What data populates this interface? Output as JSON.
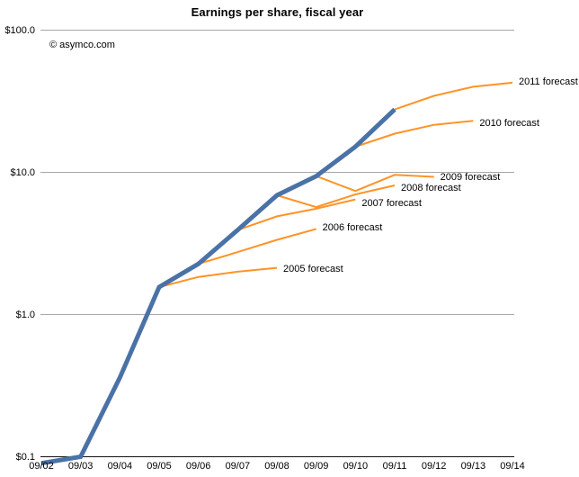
{
  "title": "Earnings per share, fiscal year",
  "watermark": "© asymco.com",
  "colors": {
    "actual": "#4a72a6",
    "forecast": "#ff9326",
    "gridline": "#a8a8a8",
    "axis": "#111111",
    "text": "#000000"
  },
  "chart_data": {
    "type": "line",
    "title": "Earnings per share, fiscal year",
    "y_scale": "log",
    "ylim": [
      0.1,
      100
    ],
    "grid": true,
    "legend": "inline-labels-at-line-ends",
    "xlabel": "",
    "ylabel": "",
    "x_categories": [
      "09/02",
      "09/03",
      "09/04",
      "09/05",
      "09/06",
      "09/07",
      "09/08",
      "09/09",
      "09/10",
      "09/11",
      "09/12",
      "09/13",
      "09/14"
    ],
    "y_ticks": [
      {
        "label": "$100.0",
        "value": 100,
        "is_axis": false
      },
      {
        "label": "$10.0",
        "value": 10,
        "is_axis": false
      },
      {
        "label": "$1.0",
        "value": 1,
        "is_axis": false
      },
      {
        "label": "$0.1",
        "value": 0.1,
        "is_axis": true
      }
    ],
    "series": [
      {
        "name": "actual-eps",
        "role": "actual",
        "start": "09/02",
        "values": [
          0.09,
          0.1,
          0.36,
          1.56,
          2.27,
          3.93,
          6.9,
          9.4,
          15.15,
          27.7
        ],
        "label": null,
        "label_dy": 0
      },
      {
        "name": "2005-forecast",
        "role": "forecast",
        "start": "09/05",
        "values": [
          1.56,
          1.84,
          2.0,
          2.13
        ],
        "label": "2005 forecast",
        "label_dy": 2
      },
      {
        "name": "2006-forecast",
        "role": "forecast",
        "start": "09/06",
        "values": [
          2.27,
          2.75,
          3.35,
          4.0
        ],
        "label": "2006 forecast",
        "label_dy": -1
      },
      {
        "name": "2007-forecast",
        "role": "forecast",
        "start": "09/07",
        "values": [
          3.93,
          4.9,
          5.55,
          6.45
        ],
        "label": "2007 forecast",
        "label_dy": 5
      },
      {
        "name": "2008-forecast",
        "role": "forecast",
        "start": "09/08",
        "values": [
          6.9,
          5.7,
          7.0,
          8.1
        ],
        "label": "2008 forecast",
        "label_dy": 4
      },
      {
        "name": "2009-forecast",
        "role": "forecast",
        "start": "09/09",
        "values": [
          9.4,
          7.4,
          9.6,
          9.3
        ],
        "label": "2009 forecast",
        "label_dy": 1
      },
      {
        "name": "2010-forecast",
        "role": "forecast",
        "start": "09/10",
        "values": [
          15.15,
          18.7,
          21.6,
          23.0
        ],
        "label": "2010 forecast",
        "label_dy": 3
      },
      {
        "name": "2011-forecast",
        "role": "forecast",
        "start": "09/11",
        "values": [
          27.7,
          34.5,
          40.0,
          42.7
        ],
        "label": "2011 forecast",
        "label_dy": 0
      }
    ]
  }
}
